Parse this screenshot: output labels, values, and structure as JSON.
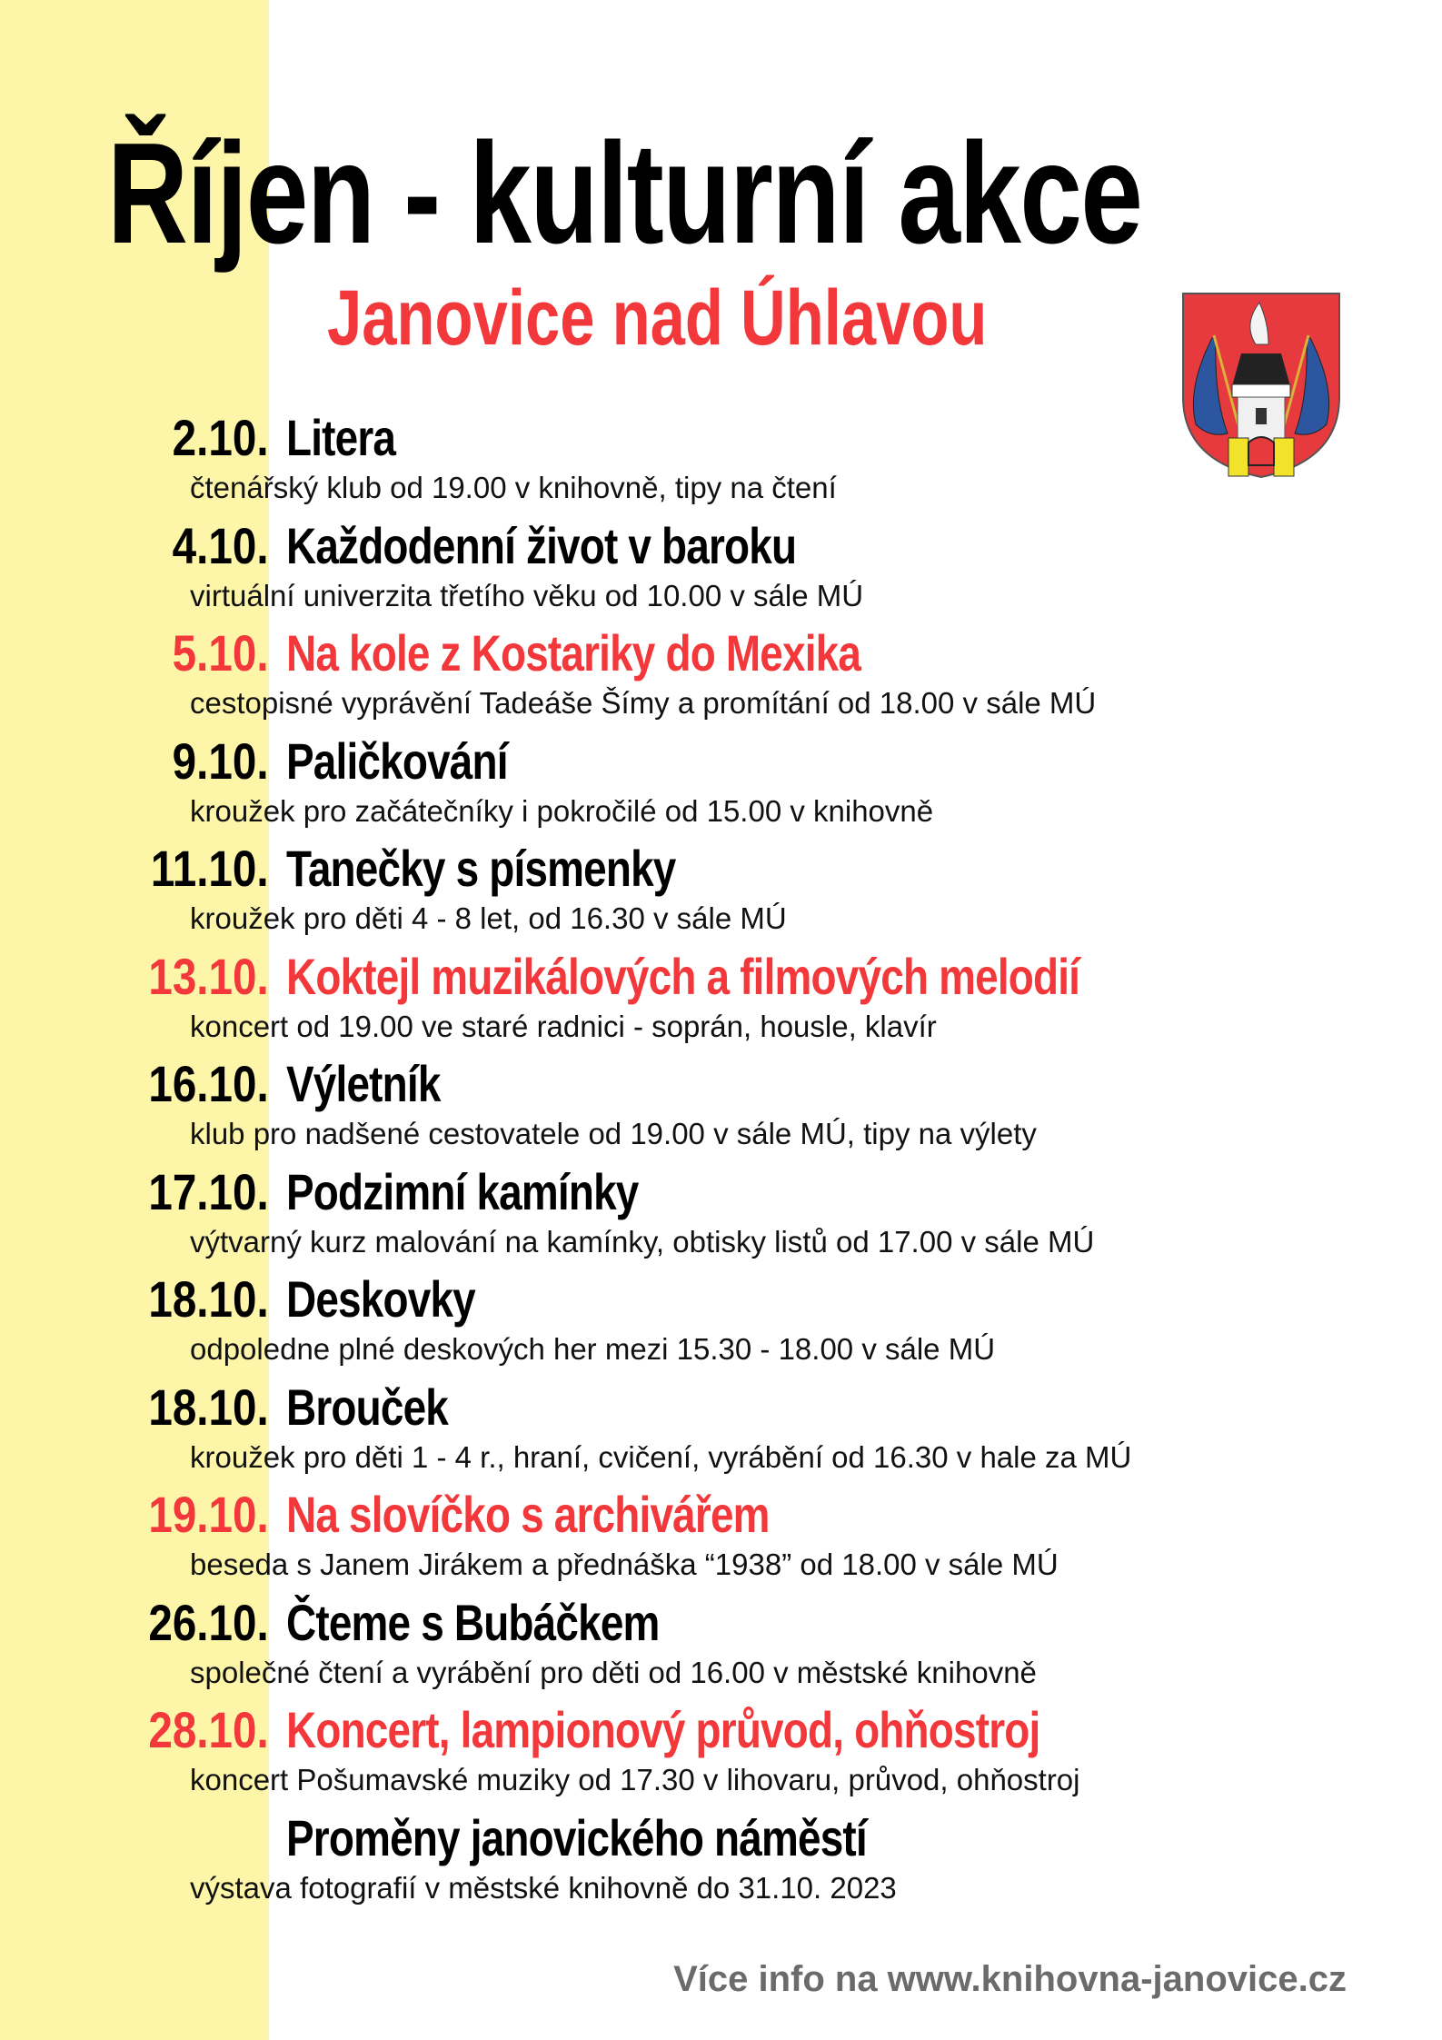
{
  "title": "Říjen - kulturní akce",
  "subtitle": "Janovice nad Úhlavou",
  "colors": {
    "accent_red": "#f2383a",
    "strip_yellow": "#fdf6a8",
    "footer_gray": "#6b6b6b"
  },
  "coat_of_arms": "Janovice nad Úhlavou coat of arms",
  "events": [
    {
      "date": "2.10.",
      "title": "Litera",
      "description": "čtenářský klub od 19.00 v knihovně, tipy na čtení",
      "highlight": false
    },
    {
      "date": "4.10.",
      "title": "Každodenní život v baroku",
      "description": "virtuální univerzita třetího věku od 10.00 v sále MÚ",
      "highlight": false
    },
    {
      "date": "5.10.",
      "title": "Na kole z Kostariky do Mexika",
      "description": "cestopisné vyprávění Tadeáše Šímy a promítání od 18.00 v sále MÚ",
      "highlight": true
    },
    {
      "date": "9.10.",
      "title": "Paličkování",
      "description": "kroužek pro začátečníky i pokročilé od 15.00 v knihovně",
      "highlight": false
    },
    {
      "date": "11.10.",
      "title": "Tanečky s písmenky",
      "description": "kroužek pro děti 4 - 8 let, od 16.30 v sále MÚ",
      "highlight": false
    },
    {
      "date": "13.10.",
      "title": "Koktejl muzikálových a filmových melodií",
      "description": "koncert od 19.00 ve staré radnici - soprán, housle, klavír",
      "highlight": true
    },
    {
      "date": "16.10.",
      "title": "Výletník",
      "description": "klub pro nadšené cestovatele od 19.00 v sále MÚ, tipy na výlety",
      "highlight": false
    },
    {
      "date": "17.10.",
      "title": "Podzimní kamínky",
      "description": "výtvarný kurz malování na kamínky, obtisky listů od 17.00 v sále MÚ",
      "highlight": false
    },
    {
      "date": "18.10.",
      "title": "Deskovky",
      "description": "odpoledne plné deskových her mezi 15.30 - 18.00 v sále MÚ",
      "highlight": false
    },
    {
      "date": "18.10.",
      "title": "Brouček",
      "description": "kroužek pro děti 1 - 4 r., hraní, cvičení, vyrábění od 16.30 v hale za MÚ",
      "highlight": false
    },
    {
      "date": "19.10.",
      "title": "Na slovíčko s archivářem",
      "description": "beseda s Janem Jirákem a přednáška “1938” od 18.00 v sále MÚ",
      "highlight": true
    },
    {
      "date": "26.10.",
      "title": "Čteme s Bubáčkem",
      "description": "společné čtení a vyrábění pro děti od 16.00 v městské knihovně",
      "highlight": false
    },
    {
      "date": "28.10.",
      "title": "Koncert, lampionový průvod, ohňostroj",
      "description": "koncert Pošumavské muziky od 17.30 v lihovaru, průvod, ohňostroj",
      "highlight": true
    },
    {
      "date": "",
      "title": "Proměny janovického náměstí",
      "description": "výstava fotografií v městské knihovně do 31.10. 2023",
      "highlight": false
    }
  ],
  "footer": "Více info na www.knihovna-janovice.cz"
}
